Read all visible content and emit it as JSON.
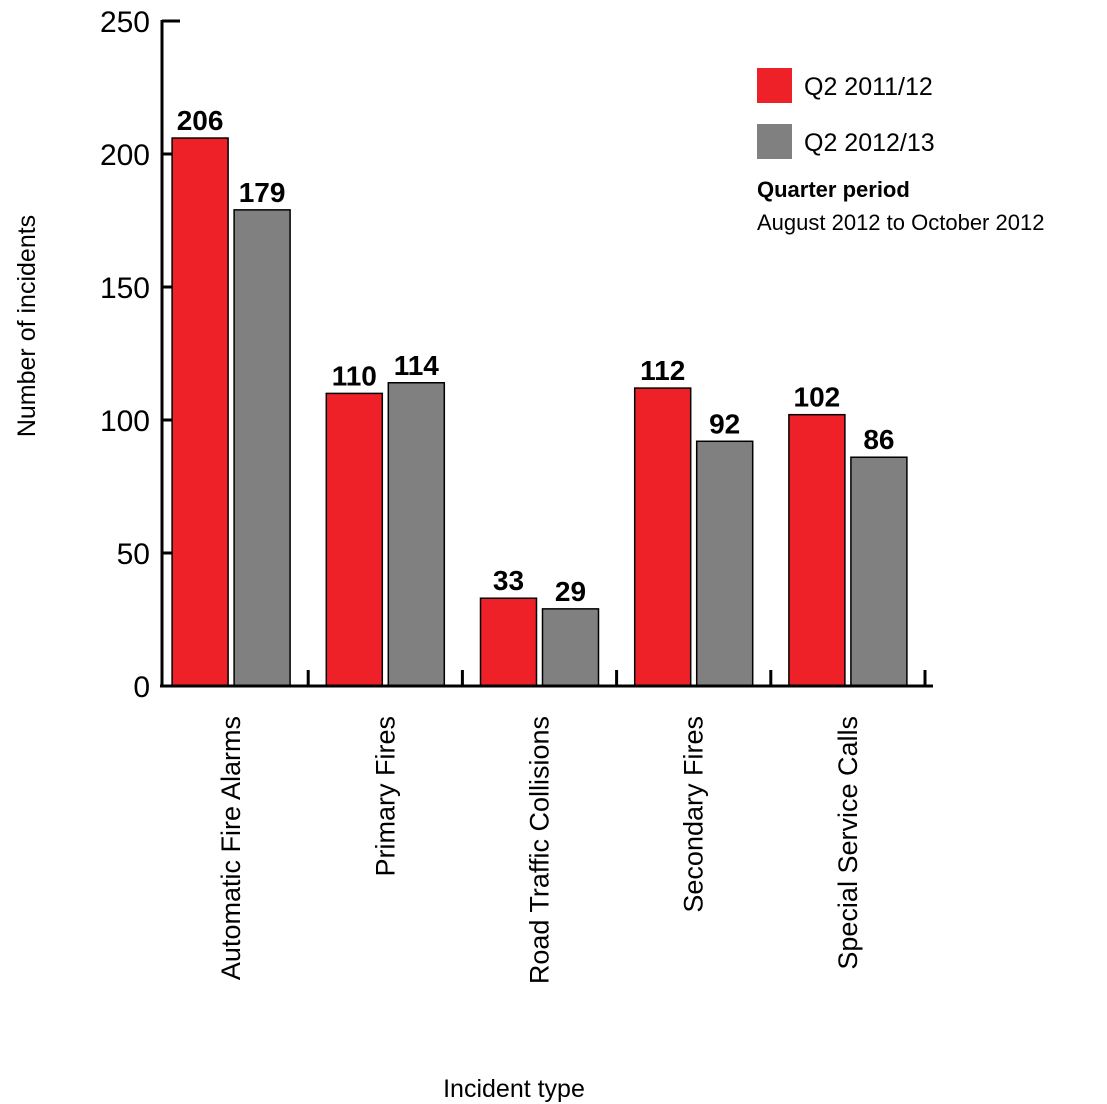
{
  "chart_data": {
    "type": "bar",
    "title": "",
    "xlabel": "Incident type",
    "ylabel": "Number of incidents",
    "ylim": [
      0,
      250
    ],
    "yticks": [
      "0",
      "50",
      "100",
      "150",
      "200",
      "250"
    ],
    "grid": false,
    "legend_position": "top-right",
    "categories": [
      "Automatic Fire Alarms",
      "Primary Fires",
      "Road Traffic Collisions",
      "Secondary Fires",
      "Special Service Calls"
    ],
    "series": [
      {
        "name": "Q2 2011/12",
        "color": "#ee2028",
        "values": [
          206,
          110,
          33,
          112,
          102
        ]
      },
      {
        "name": "Q2 2012/13",
        "color": "#808080",
        "values": [
          179,
          114,
          29,
          92,
          86
        ]
      }
    ],
    "annotation": {
      "title": "Quarter period",
      "text": "August 2012 to October 2012"
    }
  }
}
